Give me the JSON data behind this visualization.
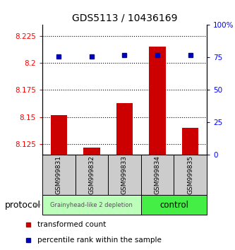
{
  "title": "GDS5113 / 10436169",
  "samples": [
    "GSM999831",
    "GSM999832",
    "GSM999833",
    "GSM999834",
    "GSM999835"
  ],
  "red_values": [
    8.152,
    8.122,
    8.163,
    8.215,
    8.14
  ],
  "blue_values": [
    76,
    76,
    77,
    77,
    77
  ],
  "ylim_left": [
    8.115,
    8.235
  ],
  "ylim_right": [
    0,
    100
  ],
  "yticks_left": [
    8.125,
    8.15,
    8.175,
    8.2,
    8.225
  ],
  "yticks_right": [
    0,
    25,
    50,
    75,
    100
  ],
  "ytick_labels_left": [
    "8.125",
    "8.15",
    "8.175",
    "8.2",
    "8.225"
  ],
  "ytick_labels_right": [
    "0",
    "25",
    "50",
    "75",
    "100%"
  ],
  "bar_color": "#cc0000",
  "dot_color": "#0000bb",
  "bar_bottom": 8.115,
  "protocol_label": "protocol",
  "legend_red": "transformed count",
  "legend_blue": "percentile rank within the sample",
  "sample_box_color": "#cccccc",
  "group1_color": "#bbffbb",
  "group1_label": "Grainyhead-like 2 depletion",
  "group2_color": "#44ee44",
  "group2_label": "control",
  "background_color": "#ffffff"
}
